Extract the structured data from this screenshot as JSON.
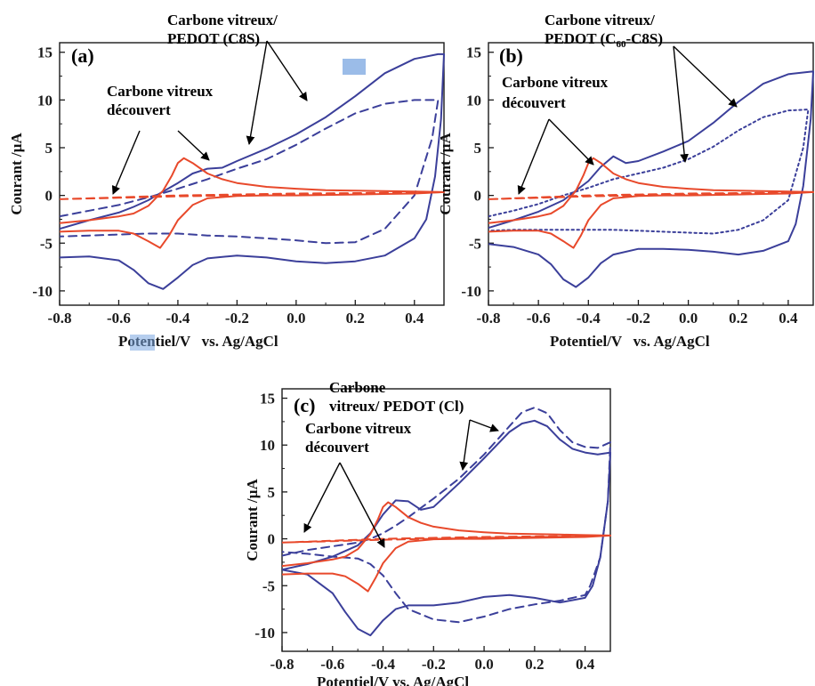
{
  "figure": {
    "colors": {
      "pedot": "#3b3f9a",
      "bare": "#e8492b",
      "arrow": "#000000",
      "axis": "#1a1a1a",
      "highlight": "#7aa6e0"
    }
  },
  "chart_data": [
    {
      "type": "line",
      "panel_label": "(a)",
      "xlabel": "Potentiel/V   vs. Ag/AgCl",
      "ylabel": "Courant /µA",
      "xlim": [
        -0.8,
        0.5
      ],
      "ylim": [
        -11.5,
        16
      ],
      "xticks": [
        "-0.8",
        "-0.6",
        "-0.4",
        "-0.2",
        "0.0",
        "0.2",
        "0.4"
      ],
      "yticks": [
        "15",
        "10",
        "5",
        "0",
        "-5",
        "-10"
      ],
      "annotations": [
        {
          "lines": [
            "Carbone  vitreux/",
            "PEDOT (C8S)"
          ]
        },
        {
          "lines": [
            "Carbone vitreux",
            "découvert"
          ]
        }
      ],
      "series": [
        {
          "style": "solid",
          "color": "#3b3f9a",
          "x": [
            -0.8,
            -0.7,
            -0.6,
            -0.55,
            -0.5,
            -0.45,
            -0.4,
            -0.35,
            -0.3,
            -0.25,
            -0.2,
            -0.1,
            0.0,
            0.1,
            0.2,
            0.3,
            0.4,
            0.48,
            0.5,
            0.49,
            0.47,
            0.44,
            0.4,
            0.3,
            0.2,
            0.1,
            0.0,
            -0.1,
            -0.2,
            -0.3,
            -0.35,
            -0.4,
            -0.45,
            -0.5,
            -0.55,
            -0.6,
            -0.7,
            -0.8
          ],
          "y": [
            -3.5,
            -2.6,
            -1.8,
            -1.2,
            -0.5,
            0.4,
            1.3,
            2.3,
            2.8,
            2.9,
            3.6,
            4.9,
            6.4,
            8.2,
            10.4,
            12.8,
            14.3,
            14.8,
            14.8,
            8,
            2,
            -2.5,
            -4.5,
            -6.3,
            -6.9,
            -7.1,
            -6.9,
            -6.5,
            -6.3,
            -6.6,
            -7.3,
            -8.6,
            -9.8,
            -9.2,
            -7.8,
            -6.8,
            -6.4,
            -6.5
          ]
        },
        {
          "style": "dash",
          "color": "#3b3f9a",
          "x": [
            -0.8,
            -0.7,
            -0.6,
            -0.5,
            -0.4,
            -0.3,
            -0.2,
            -0.1,
            0.0,
            0.1,
            0.2,
            0.3,
            0.4,
            0.48,
            0.46,
            0.4,
            0.3,
            0.2,
            0.1,
            0.0,
            -0.1,
            -0.2,
            -0.3,
            -0.4,
            -0.5,
            -0.6,
            -0.7,
            -0.8
          ],
          "y": [
            -2.2,
            -1.6,
            -1.0,
            -0.2,
            0.7,
            1.7,
            2.8,
            3.8,
            5.3,
            7.0,
            8.6,
            9.6,
            10.0,
            10.0,
            6,
            0,
            -3.5,
            -4.9,
            -5.0,
            -4.7,
            -4.5,
            -4.3,
            -4.2,
            -4.0,
            -4.0,
            -4.1,
            -4.2,
            -4.3
          ]
        },
        {
          "style": "solid",
          "color": "#e8492b",
          "x": [
            -0.8,
            -0.7,
            -0.6,
            -0.55,
            -0.5,
            -0.45,
            -0.42,
            -0.4,
            -0.38,
            -0.35,
            -0.3,
            -0.25,
            -0.2,
            -0.1,
            0.0,
            0.1,
            0.2,
            0.3,
            0.4,
            0.5,
            0.4,
            0.3,
            0.2,
            0.1,
            0.0,
            -0.1,
            -0.2,
            -0.3,
            -0.35,
            -0.4,
            -0.43,
            -0.46,
            -0.5,
            -0.55,
            -0.6,
            -0.7,
            -0.8
          ],
          "y": [
            -2.9,
            -2.6,
            -2.2,
            -1.9,
            -1.1,
            0.5,
            2.1,
            3.4,
            3.9,
            3.4,
            2.3,
            1.7,
            1.3,
            0.9,
            0.7,
            0.55,
            0.5,
            0.45,
            0.4,
            0.35,
            0.2,
            0.15,
            0.1,
            0.05,
            0.0,
            0.0,
            -0.05,
            -0.3,
            -1.0,
            -2.6,
            -4.2,
            -5.5,
            -4.8,
            -4.0,
            -3.7,
            -3.7,
            -3.8
          ]
        },
        {
          "style": "dash",
          "color": "#e8492b",
          "x": [
            -0.8,
            -0.6,
            -0.4,
            -0.2,
            0.0,
            0.2,
            0.4,
            0.5,
            0.4,
            0.2,
            0.0,
            -0.2,
            -0.4,
            -0.6,
            -0.8
          ],
          "y": [
            -0.4,
            -0.2,
            0.0,
            0.1,
            0.2,
            0.25,
            0.3,
            0.35,
            0.25,
            0.2,
            0.1,
            0.0,
            -0.1,
            -0.25,
            -0.4
          ]
        }
      ]
    },
    {
      "type": "line",
      "panel_label": "(b)",
      "xlabel": "Potentiel/V   vs. Ag/AgCl",
      "ylabel": "Courant /µA",
      "xlim": [
        -0.8,
        0.5
      ],
      "ylim": [
        -11.5,
        16
      ],
      "xticks": [
        "-0.8",
        "-0.6",
        "-0.4",
        "-0.2",
        "0.0",
        "0.2",
        "0.4"
      ],
      "yticks": [
        "15",
        "10",
        "5",
        "0",
        "-5",
        "-10"
      ],
      "annotations": [
        {
          "lines": [
            "Carbone  vitreux/",
            "PEDOT (C",
            "60",
            "-C8S)"
          ]
        },
        {
          "lines": [
            "Carbone vitreux",
            "découvert"
          ]
        }
      ],
      "series": [
        {
          "style": "solid",
          "color": "#3b3f9a",
          "x": [
            -0.8,
            -0.7,
            -0.6,
            -0.5,
            -0.4,
            -0.35,
            -0.3,
            -0.25,
            -0.2,
            -0.1,
            0.0,
            0.1,
            0.2,
            0.3,
            0.4,
            0.5,
            0.49,
            0.46,
            0.43,
            0.4,
            0.3,
            0.2,
            0.1,
            0.0,
            -0.1,
            -0.2,
            -0.3,
            -0.35,
            -0.4,
            -0.45,
            -0.5,
            -0.55,
            -0.6,
            -0.7,
            -0.8
          ],
          "y": [
            -3.4,
            -2.6,
            -1.7,
            -0.5,
            1.5,
            3.0,
            4.1,
            3.4,
            3.6,
            4.6,
            5.7,
            7.6,
            9.8,
            11.7,
            12.7,
            13.0,
            8,
            1,
            -3,
            -4.8,
            -5.8,
            -6.2,
            -5.9,
            -5.7,
            -5.6,
            -5.6,
            -6.2,
            -7.1,
            -8.6,
            -9.6,
            -8.8,
            -7.2,
            -6.2,
            -5.4,
            -5.1
          ]
        },
        {
          "style": "dot",
          "color": "#3b3f9a",
          "x": [
            -0.8,
            -0.7,
            -0.6,
            -0.5,
            -0.4,
            -0.3,
            -0.2,
            -0.1,
            0.0,
            0.1,
            0.2,
            0.3,
            0.4,
            0.48,
            0.46,
            0.4,
            0.3,
            0.2,
            0.1,
            0.0,
            -0.1,
            -0.2,
            -0.3,
            -0.4,
            -0.5,
            -0.6,
            -0.7,
            -0.8
          ],
          "y": [
            -2.2,
            -1.6,
            -0.9,
            0.0,
            0.8,
            1.7,
            2.3,
            2.9,
            3.8,
            5.1,
            6.8,
            8.2,
            8.9,
            9.0,
            5,
            -0.5,
            -2.6,
            -3.6,
            -4.0,
            -3.9,
            -3.8,
            -3.7,
            -3.6,
            -3.6,
            -3.6,
            -3.6,
            -3.6,
            -3.7
          ]
        },
        {
          "style": "solid",
          "color": "#e8492b",
          "x": [
            -0.8,
            -0.7,
            -0.6,
            -0.55,
            -0.5,
            -0.45,
            -0.42,
            -0.4,
            -0.38,
            -0.35,
            -0.3,
            -0.25,
            -0.2,
            -0.1,
            0.0,
            0.1,
            0.2,
            0.3,
            0.4,
            0.5,
            0.4,
            0.3,
            0.2,
            0.1,
            0.0,
            -0.1,
            -0.2,
            -0.3,
            -0.35,
            -0.4,
            -0.43,
            -0.46,
            -0.5,
            -0.55,
            -0.6,
            -0.7,
            -0.8
          ],
          "y": [
            -2.9,
            -2.6,
            -2.2,
            -1.9,
            -1.1,
            0.5,
            2.1,
            3.4,
            3.9,
            3.4,
            2.3,
            1.7,
            1.3,
            0.9,
            0.7,
            0.55,
            0.5,
            0.45,
            0.4,
            0.35,
            0.2,
            0.15,
            0.1,
            0.05,
            0.0,
            0.0,
            -0.05,
            -0.3,
            -1.0,
            -2.6,
            -4.2,
            -5.5,
            -4.8,
            -4.0,
            -3.7,
            -3.7,
            -3.8
          ]
        },
        {
          "style": "dash",
          "color": "#e8492b",
          "x": [
            -0.8,
            -0.6,
            -0.4,
            -0.2,
            0.0,
            0.2,
            0.4,
            0.5,
            0.4,
            0.2,
            0.0,
            -0.2,
            -0.4,
            -0.6,
            -0.8
          ],
          "y": [
            -0.4,
            -0.2,
            0.0,
            0.1,
            0.2,
            0.25,
            0.3,
            0.35,
            0.25,
            0.2,
            0.1,
            0.0,
            -0.1,
            -0.25,
            -0.4
          ]
        }
      ]
    },
    {
      "type": "line",
      "panel_label": "(c)",
      "xlabel": "Potentiel/V vs. Ag/AgCl",
      "ylabel": "Courant /µA",
      "xlim": [
        -0.8,
        0.5
      ],
      "ylim": [
        -12,
        16
      ],
      "xticks": [
        "-0.8",
        "-0.6",
        "-0.4",
        "-0.2",
        "0.0",
        "0.2",
        "0.4"
      ],
      "yticks": [
        "15",
        "10",
        "5",
        "0",
        "-5",
        "-10"
      ],
      "annotations": [
        {
          "lines": [
            "Carbone",
            "vitreux/ PEDOT (Cl)"
          ]
        },
        {
          "lines": [
            "Carbone vitreux",
            "découvert"
          ]
        }
      ],
      "series": [
        {
          "style": "solid",
          "color": "#3b3f9a",
          "x": [
            -0.8,
            -0.7,
            -0.6,
            -0.5,
            -0.45,
            -0.4,
            -0.35,
            -0.3,
            -0.25,
            -0.2,
            -0.1,
            0.0,
            0.1,
            0.15,
            0.2,
            0.25,
            0.3,
            0.35,
            0.4,
            0.45,
            0.5,
            0.49,
            0.46,
            0.43,
            0.4,
            0.3,
            0.2,
            0.1,
            0.0,
            -0.1,
            -0.2,
            -0.3,
            -0.35,
            -0.4,
            -0.45,
            -0.5,
            -0.55,
            -0.6,
            -0.7,
            -0.8
          ],
          "y": [
            -3.3,
            -2.7,
            -1.9,
            -0.7,
            0.6,
            2.6,
            4.1,
            4.0,
            3.1,
            3.4,
            5.9,
            8.6,
            11.4,
            12.3,
            12.6,
            12.0,
            10.6,
            9.6,
            9.2,
            9.0,
            9.2,
            4,
            -2,
            -5,
            -6.3,
            -6.8,
            -6.3,
            -6.0,
            -6.2,
            -6.8,
            -7.1,
            -7.1,
            -7.5,
            -8.7,
            -10.3,
            -9.6,
            -7.8,
            -5.8,
            -3.8,
            -3.3
          ]
        },
        {
          "style": "dash",
          "color": "#3b3f9a",
          "x": [
            -0.8,
            -0.7,
            -0.6,
            -0.5,
            -0.45,
            -0.4,
            -0.35,
            -0.3,
            -0.2,
            -0.1,
            0.0,
            0.1,
            0.15,
            0.2,
            0.25,
            0.3,
            0.35,
            0.4,
            0.45,
            0.5,
            0.49,
            0.46,
            0.42,
            0.4,
            0.3,
            0.2,
            0.1,
            0.0,
            -0.1,
            -0.2,
            -0.3,
            -0.35,
            -0.4,
            -0.45,
            -0.5,
            -0.55,
            -0.6,
            -0.7,
            -0.8
          ],
          "y": [
            -1.8,
            -1.2,
            -0.8,
            -0.4,
            0.0,
            0.6,
            1.4,
            2.3,
            4.3,
            6.4,
            9.0,
            12.0,
            13.5,
            14.0,
            13.4,
            11.6,
            10.3,
            9.8,
            9.7,
            10.3,
            4,
            -2,
            -5,
            -6.0,
            -6.6,
            -7.0,
            -7.5,
            -8.3,
            -8.9,
            -8.6,
            -7.5,
            -5.8,
            -3.9,
            -2.7,
            -2.1,
            -2.0,
            -1.9,
            -1.6,
            -1.4
          ]
        },
        {
          "style": "solid",
          "color": "#e8492b",
          "x": [
            -0.8,
            -0.7,
            -0.6,
            -0.55,
            -0.5,
            -0.45,
            -0.42,
            -0.4,
            -0.38,
            -0.35,
            -0.3,
            -0.25,
            -0.2,
            -0.1,
            0.0,
            0.1,
            0.2,
            0.3,
            0.4,
            0.5,
            0.4,
            0.3,
            0.2,
            0.1,
            0.0,
            -0.1,
            -0.2,
            -0.3,
            -0.35,
            -0.4,
            -0.43,
            -0.46,
            -0.5,
            -0.55,
            -0.6,
            -0.7,
            -0.8
          ],
          "y": [
            -2.9,
            -2.6,
            -2.2,
            -1.9,
            -1.1,
            0.5,
            2.1,
            3.4,
            3.9,
            3.4,
            2.3,
            1.7,
            1.3,
            0.9,
            0.7,
            0.55,
            0.5,
            0.45,
            0.4,
            0.35,
            0.2,
            0.15,
            0.1,
            0.05,
            0.0,
            0.0,
            -0.05,
            -0.3,
            -1.0,
            -2.6,
            -4.2,
            -5.6,
            -4.8,
            -4.0,
            -3.7,
            -3.7,
            -3.8
          ]
        },
        {
          "style": "dash",
          "color": "#e8492b",
          "x": [
            -0.8,
            -0.6,
            -0.4,
            -0.2,
            0.0,
            0.2,
            0.4,
            0.5,
            0.4,
            0.2,
            0.0,
            -0.2,
            -0.4,
            -0.6,
            -0.8
          ],
          "y": [
            -0.4,
            -0.2,
            0.0,
            0.1,
            0.2,
            0.25,
            0.3,
            0.35,
            0.25,
            0.2,
            0.1,
            0.0,
            -0.1,
            -0.25,
            -0.4
          ]
        }
      ]
    }
  ]
}
